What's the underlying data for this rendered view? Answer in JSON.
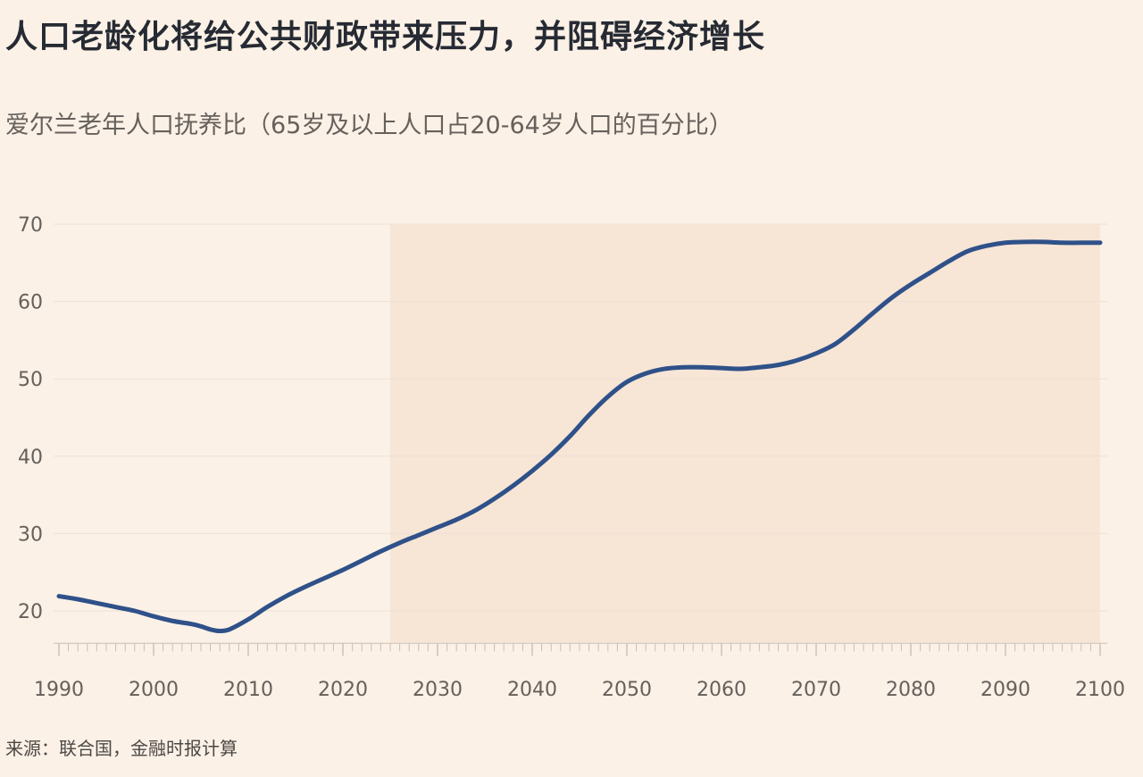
{
  "title": "人口老龄化将给公共财政带来压力，并阻碍经济增长",
  "subtitle": "爱尔兰老年人口抚养比（65岁及以上人口占20-64岁人口的百分比）",
  "source": "来源：联合国，金融时报计算",
  "colors": {
    "background": "#fbf1e6",
    "projection_band": "#f7e5d6",
    "line": "#2f5189",
    "grid": "#ece1d6",
    "axis": "#c9bfb6"
  },
  "chart_data": {
    "type": "line",
    "title": "人口老龄化将给公共财政带来压力，并阻碍经济增长",
    "subtitle": "爱尔兰老年人口抚养比（65岁及以上人口占20-64岁人口的百分比）",
    "xlabel": "",
    "ylabel": "",
    "xlim": [
      1990,
      2100
    ],
    "ylim": [
      15,
      70
    ],
    "yticks": [
      20,
      30,
      40,
      50,
      60,
      70
    ],
    "xticks": [
      1990,
      2000,
      2010,
      2020,
      2030,
      2040,
      2050,
      2060,
      2070,
      2080,
      2090,
      2100
    ],
    "projection_shaded_from": 2025,
    "grid": true,
    "series": [
      {
        "x": [
          1990,
          1992,
          1994,
          1996,
          1998,
          2000,
          2002,
          2004,
          2005,
          2006,
          2007,
          2008,
          2010,
          2012,
          2014,
          2016,
          2018,
          2020,
          2022,
          2024,
          2026,
          2028,
          2030,
          2032,
          2034,
          2036,
          2038,
          2040,
          2042,
          2044,
          2046,
          2048,
          2050,
          2052,
          2054,
          2056,
          2058,
          2060,
          2062,
          2064,
          2066,
          2068,
          2070,
          2072,
          2074,
          2076,
          2078,
          2080,
          2082,
          2084,
          2086,
          2088,
          2090,
          2092,
          2094,
          2096,
          2098,
          2100
        ],
        "y": [
          21.9,
          21.5,
          21.0,
          20.5,
          20.0,
          19.3,
          18.7,
          18.3,
          18.0,
          17.6,
          17.4,
          17.6,
          18.9,
          20.5,
          21.9,
          23.1,
          24.2,
          25.3,
          26.5,
          27.7,
          28.8,
          29.8,
          30.8,
          31.8,
          33.0,
          34.5,
          36.2,
          38.1,
          40.2,
          42.6,
          45.3,
          47.7,
          49.6,
          50.7,
          51.3,
          51.5,
          51.5,
          51.4,
          51.3,
          51.5,
          51.8,
          52.4,
          53.3,
          54.5,
          56.4,
          58.5,
          60.5,
          62.2,
          63.7,
          65.2,
          66.5,
          67.2,
          67.6,
          67.7,
          67.7,
          67.6,
          67.6,
          67.6
        ]
      }
    ]
  }
}
